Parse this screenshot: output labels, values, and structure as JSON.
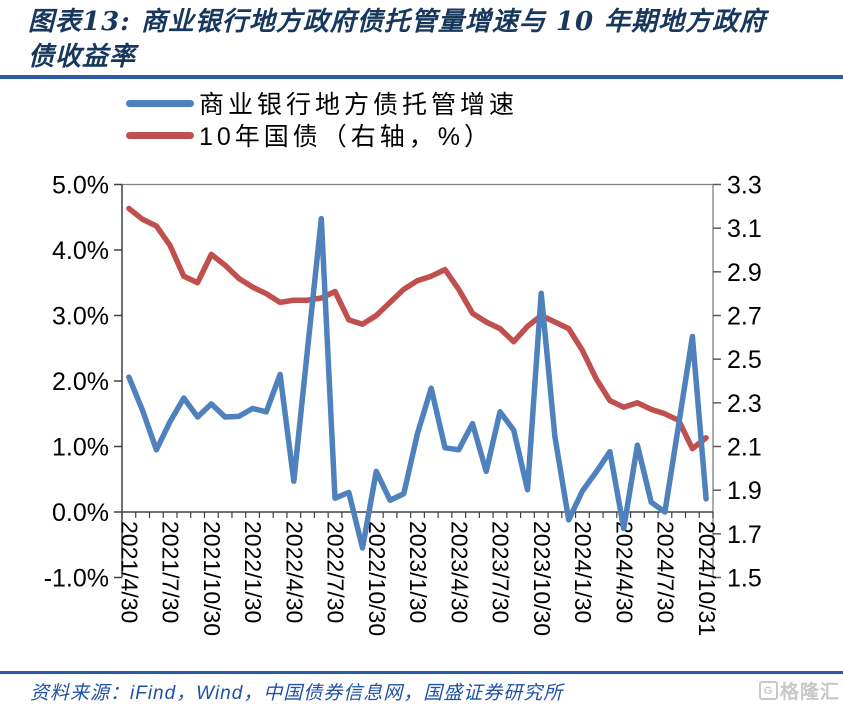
{
  "header": {
    "title_line1": "图表13:  商业银行地方政府债托管量增速与 10 年期地方政府",
    "title_line2": "债收益率"
  },
  "legend": [
    {
      "label": "商业银行地方债托管增速",
      "color": "#4F81BD"
    },
    {
      "label": "10年国债（右轴，%）",
      "color": "#C0504D"
    }
  ],
  "footer": {
    "source": "资料来源：iFind，Wind，中国债券信息网，国盛证券研究所",
    "watermark": "格隆汇",
    "watermark_icon": "G"
  },
  "chart_data": {
    "type": "line",
    "title": "商业银行地方政府债托管量增速与10年期地方政府债收益率",
    "grid": false,
    "legend_position": "top-left",
    "x_months": [
      "2021-04",
      "2021-05",
      "2021-06",
      "2021-07",
      "2021-08",
      "2021-09",
      "2021-10",
      "2021-11",
      "2021-12",
      "2022-01",
      "2022-02",
      "2022-03",
      "2022-04",
      "2022-05",
      "2022-06",
      "2022-07",
      "2022-08",
      "2022-09",
      "2022-10",
      "2022-11",
      "2022-12",
      "2023-01",
      "2023-02",
      "2023-03",
      "2023-04",
      "2023-05",
      "2023-06",
      "2023-07",
      "2023-08",
      "2023-09",
      "2023-10",
      "2023-11",
      "2023-12",
      "2024-01",
      "2024-02",
      "2024-03",
      "2024-04",
      "2024-05",
      "2024-06",
      "2024-07",
      "2024-08",
      "2024-09",
      "2024-10"
    ],
    "x_tick_labels": [
      "2021/4/30",
      "2021/7/30",
      "2021/10/30",
      "2022/1/30",
      "2022/4/30",
      "2022/7/30",
      "2022/10/30",
      "2023/1/30",
      "2023/4/30",
      "2023/7/30",
      "2023/10/30",
      "2024/1/30",
      "2024/4/30",
      "2024/7/30",
      "2024/10/31"
    ],
    "left_axis": {
      "min": -1.0,
      "max": 5.0,
      "unit": "%",
      "ticks": [
        "5.0%",
        "4.0%",
        "3.0%",
        "2.0%",
        "1.0%",
        "0.0%",
        "-1.0%"
      ]
    },
    "right_axis": {
      "min": 1.5,
      "max": 3.3,
      "ticks": [
        "3.3",
        "3.1",
        "2.9",
        "2.7",
        "2.5",
        "2.3",
        "2.1",
        "1.9",
        "1.7",
        "1.5"
      ]
    },
    "series": [
      {
        "name": "商业银行地方债托管增速",
        "axis": "left",
        "color": "#4F81BD",
        "unit": "%",
        "values": [
          2.06,
          1.55,
          0.95,
          1.38,
          1.74,
          1.45,
          1.65,
          1.45,
          1.46,
          1.58,
          1.53,
          2.1,
          0.47,
          2.48,
          4.48,
          0.21,
          0.3,
          -0.55,
          0.62,
          0.18,
          0.28,
          1.2,
          1.89,
          0.98,
          0.95,
          1.35,
          0.62,
          1.53,
          1.25,
          0.34,
          3.34,
          1.15,
          -0.12,
          0.32,
          0.61,
          0.92,
          -0.25,
          1.02,
          0.15,
          0.0,
          1.33,
          2.68,
          0.2
        ]
      },
      {
        "name": "10年国债（右轴，%）",
        "axis": "right",
        "color": "#C0504D",
        "unit": "%",
        "values": [
          3.19,
          3.14,
          3.11,
          3.02,
          2.88,
          2.85,
          2.98,
          2.93,
          2.87,
          2.83,
          2.8,
          2.76,
          2.77,
          2.77,
          2.78,
          2.81,
          2.68,
          2.66,
          2.7,
          2.76,
          2.82,
          2.86,
          2.88,
          2.91,
          2.82,
          2.71,
          2.67,
          2.64,
          2.58,
          2.65,
          2.7,
          2.67,
          2.64,
          2.54,
          2.41,
          2.31,
          2.28,
          2.3,
          2.27,
          2.25,
          2.22,
          2.09,
          2.14
        ]
      }
    ]
  }
}
